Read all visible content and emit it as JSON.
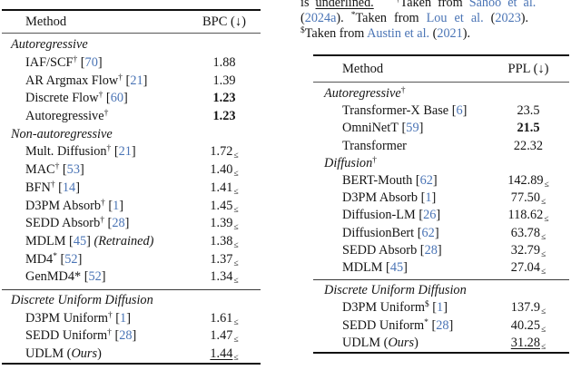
{
  "caption": {
    "line1": {
      "pre": "is",
      "underlined": "underlined.",
      "sup": "†",
      "mid": "Taken from",
      "link": "Sahoo et al."
    },
    "line2": {
      "o1": "(",
      "year1": "2024a",
      "c1": ").",
      "sup": "*",
      "mid": "Taken from",
      "link": "Lou et al.",
      "o2": "(",
      "year2": "2023",
      "c2": ")."
    },
    "line3": {
      "sup": "$",
      "mid": "Taken from",
      "link": "Austin et al.",
      "o": "(",
      "year": "2021",
      "c": ")."
    }
  },
  "symbols": {
    "leq": "≤",
    "cite_open": "[",
    "cite_close": "]",
    "paren_open": "(",
    "paren_close": ")"
  },
  "colors": {
    "link": "#4a74b5",
    "text": "#141414",
    "rule": "#111111"
  },
  "tables": {
    "left": {
      "header": {
        "method": "Method",
        "metric": "BPC (↓)"
      },
      "groups": [
        {
          "section": "Autoregressive",
          "rows": [
            {
              "name": "IAF/SCF",
              "sup": "†",
              "cite": "70",
              "value": "1.88"
            },
            {
              "name": "AR Argmax Flow",
              "sup": "†",
              "cite": "21",
              "value": "1.39"
            },
            {
              "name": "Discrete Flow",
              "sup": "†",
              "cite": "60",
              "value": "1.23",
              "bold": true
            },
            {
              "name": "Autoregressive",
              "sup": "†",
              "value": "1.23",
              "bold": true
            }
          ]
        },
        {
          "section": "Non-autoregressive",
          "rows": [
            {
              "name": "Mult. Diffusion",
              "sup": "†",
              "cite": "21",
              "value": "1.72",
              "leq": true
            },
            {
              "name": "MAC",
              "sup": "†",
              "cite": "53",
              "value": "1.40",
              "leq": true
            },
            {
              "name": "BFN",
              "sup": "†",
              "cite": "14",
              "value": "1.41",
              "leq": true
            },
            {
              "name": "D3PM Absorb",
              "sup": "†",
              "cite": "1",
              "value": "1.45",
              "leq": true
            },
            {
              "name": "SEDD Absorb",
              "sup": "†",
              "cite": "28",
              "value": "1.39",
              "leq": true
            },
            {
              "name": "MDLM",
              "cite": "45",
              "post": "(Retrained)",
              "value": "1.38",
              "leq": true
            },
            {
              "name": "MD4",
              "sup": "*",
              "cite": "52",
              "value": "1.37",
              "leq": true
            },
            {
              "name": "GenMD4*",
              "cite": "52",
              "value": "1.34",
              "leq": true
            }
          ]
        },
        {
          "section": "Discrete Uniform Diffusion",
          "rule_before": true,
          "rows": [
            {
              "name": "D3PM Uniform",
              "sup": "†",
              "cite": "1",
              "value": "1.61",
              "leq": true
            },
            {
              "name": "SEDD Uniform",
              "sup": "†",
              "cite": "28",
              "value": "1.47",
              "leq": true
            },
            {
              "name": "UDLM",
              "ours": "Ours",
              "value": "1.44",
              "leq": true,
              "underline": true
            }
          ]
        }
      ]
    },
    "right": {
      "header": {
        "method": "Method",
        "metric": "PPL (↓)"
      },
      "groups": [
        {
          "section": "Autoregressive",
          "sup": "†",
          "rows": [
            {
              "name": "Transformer-X Base",
              "cite": "6",
              "value": "23.5"
            },
            {
              "name": "OmniNetT",
              "cite": "59",
              "value": "21.5",
              "bold": true
            },
            {
              "name": "Transformer",
              "value": "22.32"
            }
          ]
        },
        {
          "section": "Diffusion",
          "sup": "†",
          "rows": [
            {
              "name": "BERT-Mouth",
              "cite": "62",
              "value": "142.89",
              "leq": true
            },
            {
              "name": "D3PM Absorb",
              "cite": "1",
              "value": "77.50",
              "leq": true
            },
            {
              "name": "Diffusion-LM",
              "cite": "26",
              "value": "118.62",
              "leq": true
            },
            {
              "name": "DiffusionBert",
              "cite": "62",
              "value": "63.78",
              "leq": true
            },
            {
              "name": "SEDD Absorb",
              "cite": "28",
              "value": "32.79",
              "leq": true
            },
            {
              "name": "MDLM",
              "cite": "45",
              "value": "27.04",
              "leq": true
            }
          ]
        },
        {
          "section": "Discrete Uniform Diffusion",
          "rule_before": true,
          "rows": [
            {
              "name": "D3PM Uniform",
              "sup": "$",
              "cite": "1",
              "value": "137.9",
              "leq": true
            },
            {
              "name": "SEDD Uniform",
              "sup": "*",
              "cite": "28",
              "value": "40.25",
              "leq": true
            },
            {
              "name": "UDLM",
              "ours": "Ours",
              "value": "31.28",
              "leq": true,
              "underline": true
            }
          ]
        }
      ]
    }
  }
}
